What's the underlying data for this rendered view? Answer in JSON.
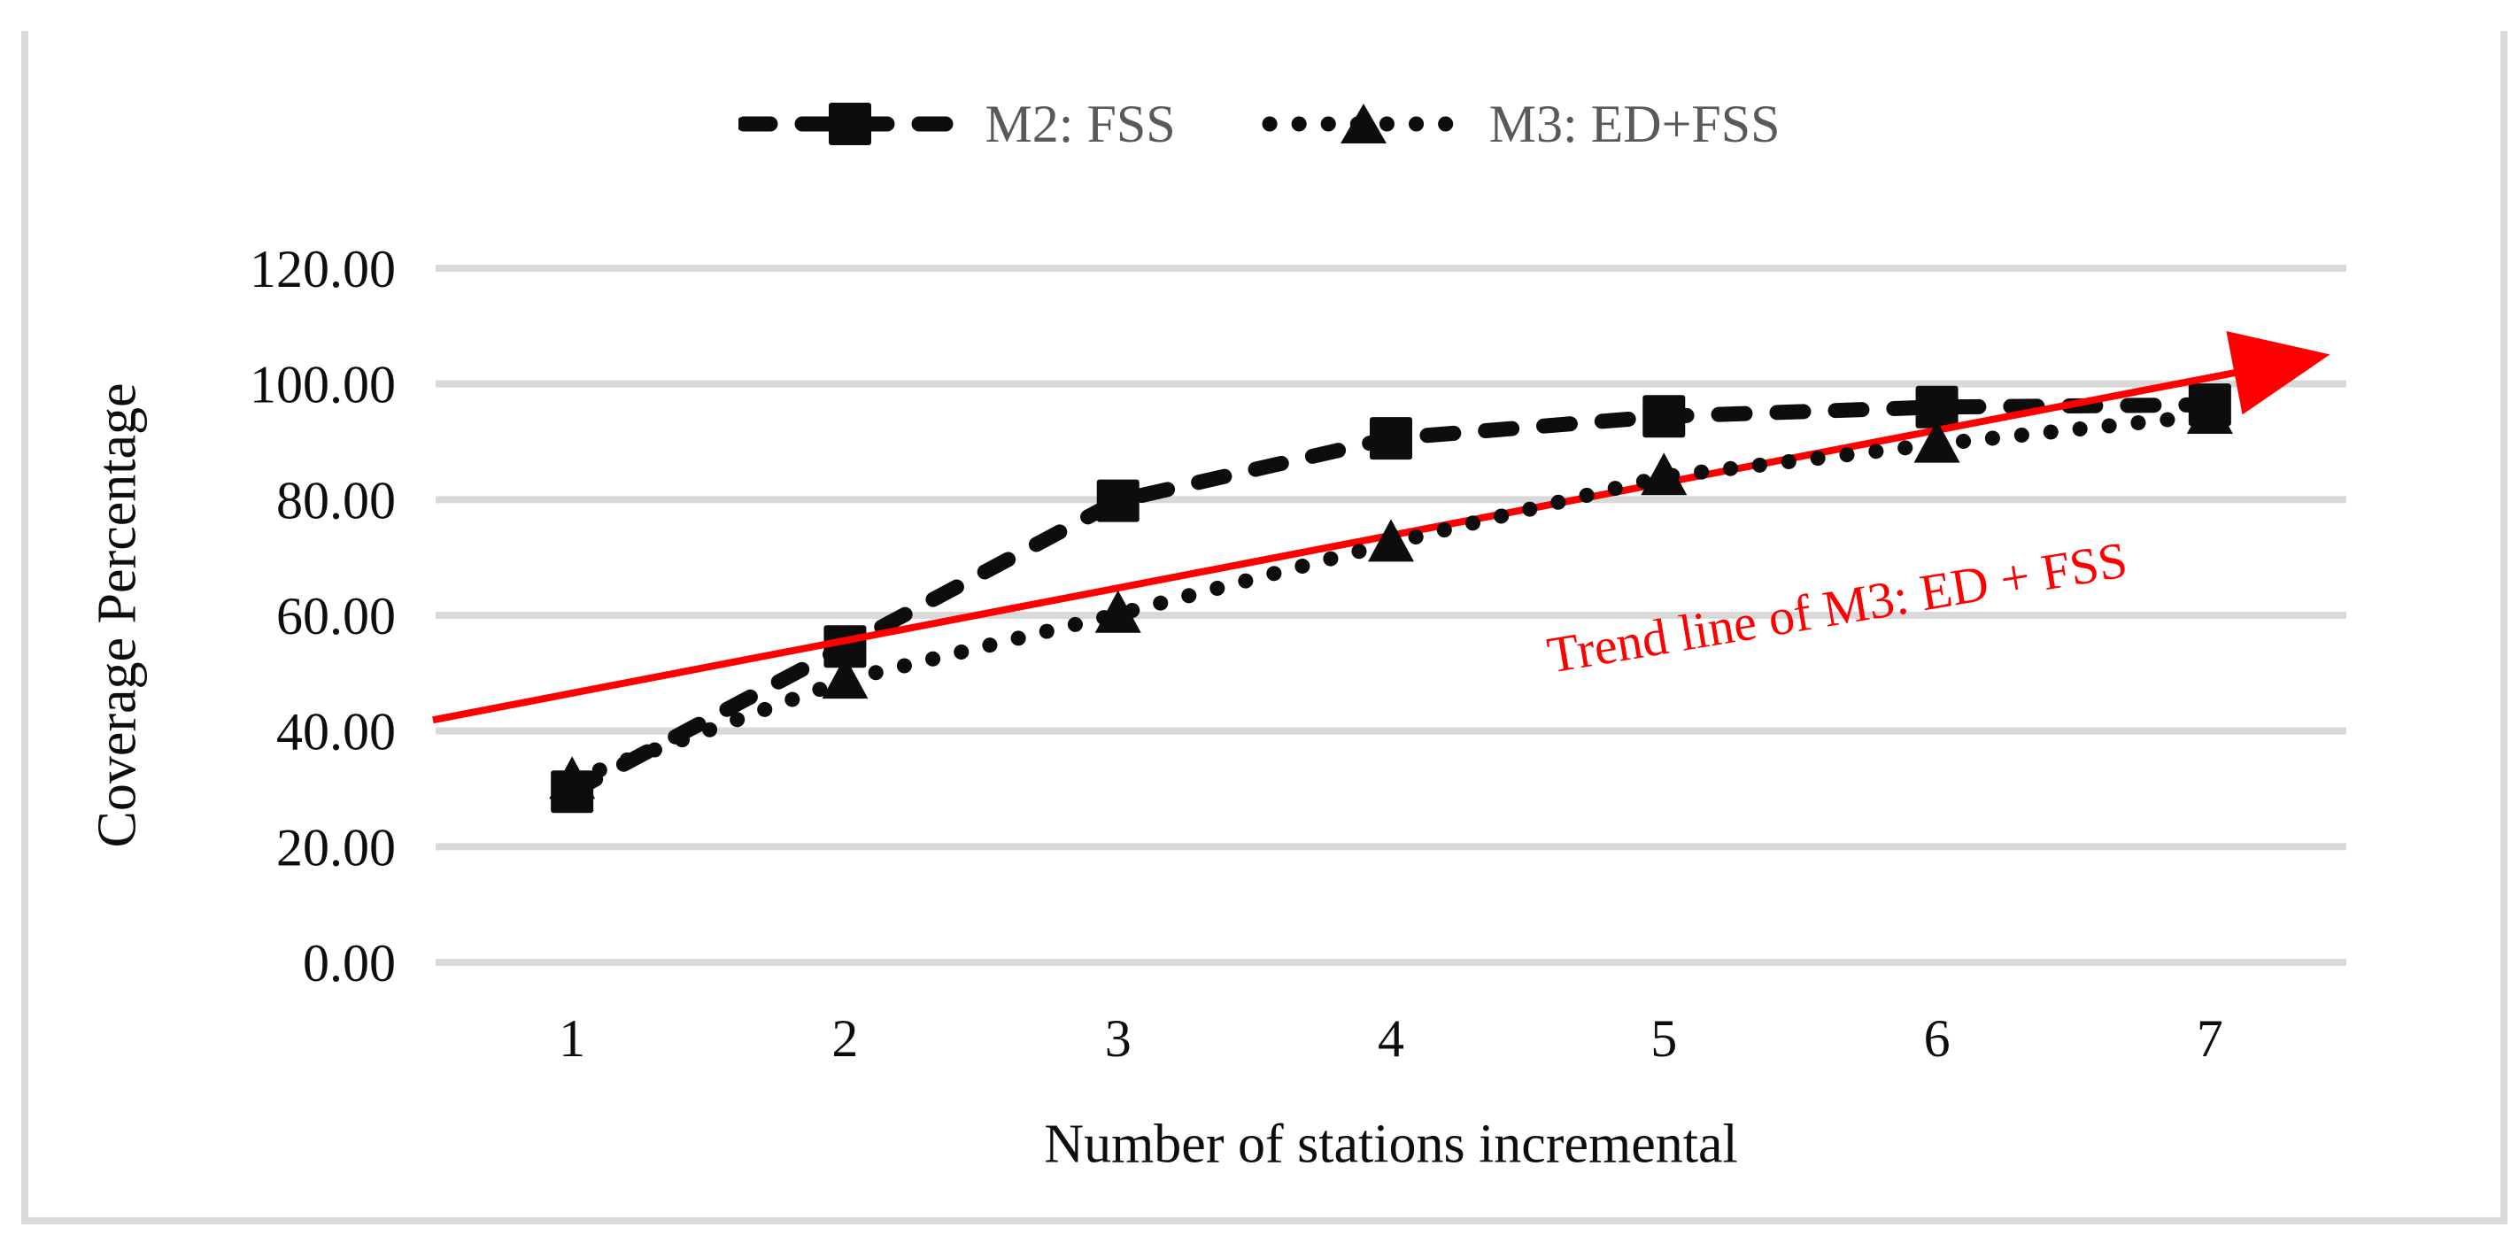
{
  "figure": {
    "y_axis_title": "Coverage Percentage",
    "x_axis_title": "Number of stations incremental",
    "trend_annotation": "Trend line of M3: ED + FSS"
  },
  "legend": {
    "items": [
      {
        "label": "M2: FSS",
        "marker": "square-dashed-line"
      },
      {
        "label": "M3: ED+FSS",
        "marker": "triangle-dotted-line"
      }
    ]
  },
  "colors": {
    "series_black": "#0d0d0d",
    "trend_red": "#ff0000",
    "gridline": "#d9d9d9",
    "frame_border": "#d9d9d9",
    "legend_text": "#595959",
    "axis_text": "#0d0d0d"
  },
  "chart_data": {
    "type": "line",
    "categories": [
      "1",
      "2",
      "3",
      "4",
      "5",
      "6",
      "7"
    ],
    "series": [
      {
        "name": "M2: FSS",
        "marker": "square",
        "line_style": "dashed",
        "values": [
          29.5,
          54.6,
          79.8,
          90.6,
          94.4,
          96.0,
          96.4
        ]
      },
      {
        "name": "M3: ED+FSS",
        "marker": "triangle",
        "line_style": "dotted",
        "values": [
          31.5,
          48.8,
          60.2,
          72.5,
          84.0,
          89.6,
          94.6
        ]
      }
    ],
    "trendline": {
      "for_series": "M3: ED+FSS",
      "start": {
        "x": 0.49,
        "y": 41.9
      },
      "end": {
        "x": 7.44,
        "y": 105.1
      },
      "label": "Trend line of M3: ED + FSS"
    },
    "title": "",
    "xlabel": "Number of stations incremental",
    "ylabel": "Coverage Percentage",
    "ylim": [
      0,
      120
    ],
    "y_tick_labels": [
      "0.00",
      "20.00",
      "40.00",
      "60.00",
      "80.00",
      "100.00",
      "120.00"
    ],
    "grid": "horizontal-only",
    "legend_position": "top-center"
  }
}
